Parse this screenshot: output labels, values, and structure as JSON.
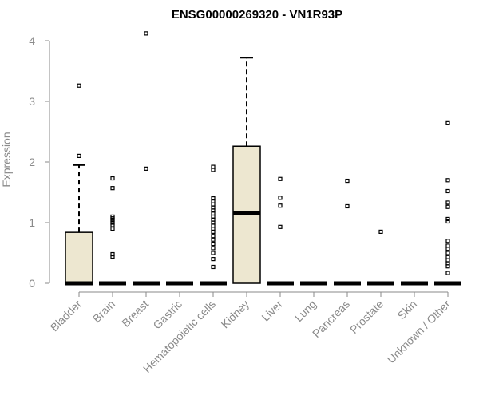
{
  "chart_data": {
    "type": "boxplot",
    "title": "ENSG00000269320 - VN1R93P",
    "ylabel": "Expression",
    "xlabel": "",
    "ylim": [
      0,
      4.2
    ],
    "yticks": [
      0,
      1,
      2,
      3,
      4
    ],
    "grid": false,
    "colors": {
      "box_fill": "#ede7d0",
      "box_stroke": "#000000",
      "axis": "#8a8a8a"
    },
    "categories": [
      "Bladder",
      "Brain",
      "Breast",
      "Gastric",
      "Hematopoietic cells",
      "Kidney",
      "Liver",
      "Lung",
      "Pancreas",
      "Prostate",
      "Skin",
      "Unknown / Other"
    ],
    "boxes": [
      {
        "category": "Bladder",
        "min": 0,
        "q1": 0,
        "median": 0,
        "q3": 0.84,
        "max": 1.95,
        "outliers": [
          2.1,
          3.26
        ]
      },
      {
        "category": "Brain",
        "min": 0,
        "q1": 0,
        "median": 0,
        "q3": 0,
        "max": 0,
        "outliers": [
          0.44,
          0.48,
          0.9,
          0.96,
          1.0,
          1.04,
          1.07,
          1.1,
          1.57,
          1.73
        ]
      },
      {
        "category": "Breast",
        "min": 0,
        "q1": 0,
        "median": 0,
        "q3": 0,
        "max": 0,
        "outliers": [
          1.89,
          4.12
        ]
      },
      {
        "category": "Gastric",
        "min": 0,
        "q1": 0,
        "median": 0,
        "q3": 0,
        "max": 0,
        "outliers": []
      },
      {
        "category": "Hematopoietic cells",
        "min": 0,
        "q1": 0,
        "median": 0,
        "q3": 0,
        "max": 0,
        "outliers": [
          0.27,
          0.4,
          0.5,
          0.58,
          0.65,
          0.72,
          0.78,
          0.85,
          0.9,
          0.95,
          1.0,
          1.05,
          1.1,
          1.15,
          1.2,
          1.25,
          1.3,
          1.35,
          1.4,
          1.87,
          1.92
        ]
      },
      {
        "category": "Kidney",
        "min": 0,
        "q1": 0,
        "median": 1.16,
        "q3": 2.26,
        "max": 3.72,
        "outliers": []
      },
      {
        "category": "Liver",
        "min": 0,
        "q1": 0,
        "median": 0,
        "q3": 0,
        "max": 0,
        "outliers": [
          0.93,
          1.28,
          1.41,
          1.72
        ]
      },
      {
        "category": "Lung",
        "min": 0,
        "q1": 0,
        "median": 0,
        "q3": 0,
        "max": 0,
        "outliers": []
      },
      {
        "category": "Pancreas",
        "min": 0,
        "q1": 0,
        "median": 0,
        "q3": 0,
        "max": 0,
        "outliers": [
          1.27,
          1.69
        ]
      },
      {
        "category": "Prostate",
        "min": 0,
        "q1": 0,
        "median": 0,
        "q3": 0,
        "max": 0,
        "outliers": [
          0.85
        ]
      },
      {
        "category": "Skin",
        "min": 0,
        "q1": 0,
        "median": 0,
        "q3": 0,
        "max": 0,
        "outliers": []
      },
      {
        "category": "Unknown / Other",
        "min": 0,
        "q1": 0,
        "median": 0,
        "q3": 0,
        "max": 0,
        "outliers": [
          0.17,
          0.28,
          0.33,
          0.38,
          0.43,
          0.5,
          0.57,
          0.62,
          0.7,
          1.02,
          1.06,
          1.26,
          1.33,
          1.52,
          1.7,
          2.64
        ]
      }
    ]
  }
}
